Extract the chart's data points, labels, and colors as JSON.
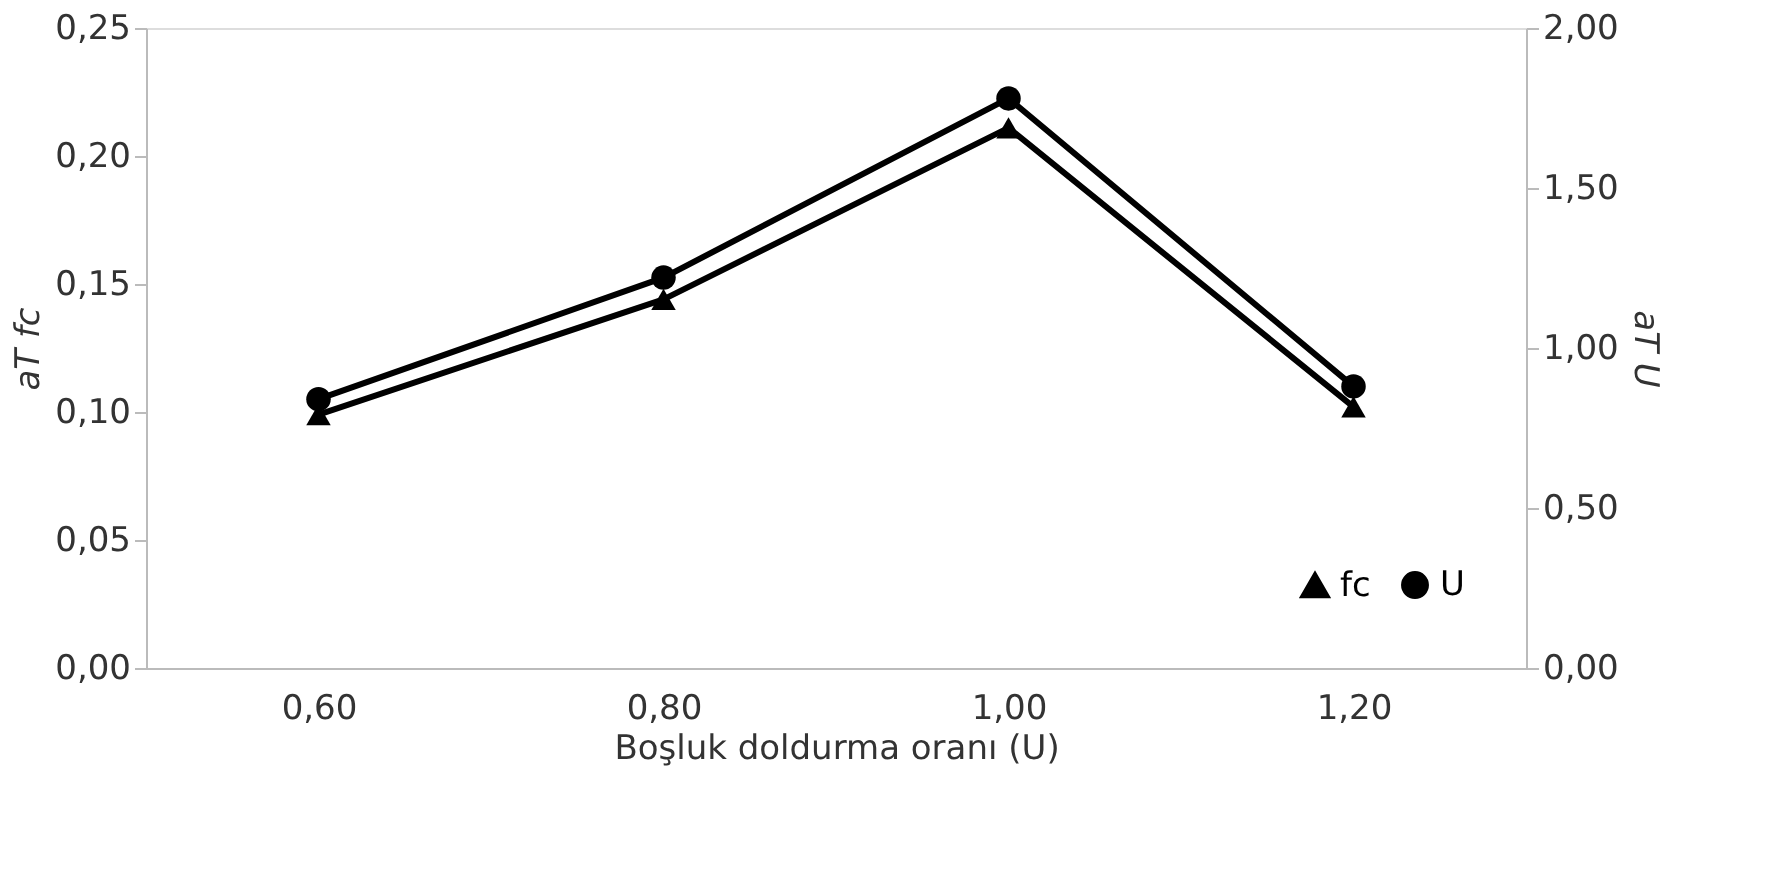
{
  "chart_data": {
    "type": "line",
    "xlabel": "Boşluk doldurma oranı (U)",
    "ylabel": "aT fc",
    "y2label": "aT U",
    "categories": [
      "0,60",
      "0,80",
      "1,00",
      "1,20"
    ],
    "series": [
      {
        "name": "fc",
        "color": "#000000",
        "marker": "triangle",
        "values": [
          0.099,
          0.144,
          0.211,
          0.102
        ]
      },
      {
        "name": "U",
        "color": "#000000",
        "marker": "circle",
        "axis": "y2",
        "values": [
          0.84,
          1.22,
          1.78,
          0.88
        ]
      }
    ],
    "ylim": [
      0,
      0.25
    ],
    "yticks": [
      {
        "value": 0,
        "label": "0,00"
      },
      {
        "value": 0.05,
        "label": "0,05"
      },
      {
        "value": 0.1,
        "label": "0,10"
      },
      {
        "value": 0.15,
        "label": "0,15"
      },
      {
        "value": 0.2,
        "label": "0,20"
      },
      {
        "value": 0.25,
        "label": "0,25"
      }
    ],
    "y2lim": [
      0,
      2
    ],
    "y2ticks": [
      {
        "value": 0,
        "label": "0,00"
      },
      {
        "value": 0.5,
        "label": "0,50"
      },
      {
        "value": 1,
        "label": "1,00"
      },
      {
        "value": 1.5,
        "label": "1,50"
      },
      {
        "value": 2,
        "label": "2,00"
      }
    ],
    "legend": "bottom right",
    "grid": false,
    "line_style": "solid"
  }
}
